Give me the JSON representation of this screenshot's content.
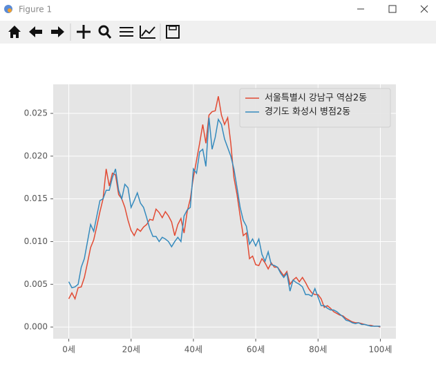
{
  "window_title": "Figure 1",
  "chart_data": {
    "type": "line",
    "x": [
      0,
      1,
      2,
      3,
      4,
      5,
      6,
      7,
      8,
      9,
      10,
      11,
      12,
      13,
      14,
      15,
      16,
      17,
      18,
      19,
      20,
      21,
      22,
      23,
      24,
      25,
      26,
      27,
      28,
      29,
      30,
      31,
      32,
      33,
      34,
      35,
      36,
      37,
      38,
      39,
      40,
      41,
      42,
      43,
      44,
      45,
      46,
      47,
      48,
      49,
      50,
      51,
      52,
      53,
      54,
      55,
      56,
      57,
      58,
      59,
      60,
      61,
      62,
      63,
      64,
      65,
      66,
      67,
      68,
      69,
      70,
      71,
      72,
      73,
      74,
      75,
      76,
      77,
      78,
      79,
      80,
      81,
      82,
      83,
      84,
      85,
      86,
      87,
      88,
      89,
      90,
      91,
      92,
      93,
      94,
      95,
      96,
      97,
      98,
      99,
      100
    ],
    "series": [
      {
        "name": "서울특별시 강남구 역삼2동",
        "color": "#E24A33",
        "values": [
          0.0033,
          0.004,
          0.0033,
          0.0046,
          0.0047,
          0.0058,
          0.0075,
          0.0093,
          0.0102,
          0.0118,
          0.0135,
          0.015,
          0.0185,
          0.0165,
          0.018,
          0.0178,
          0.0155,
          0.015,
          0.014,
          0.0125,
          0.0113,
          0.0107,
          0.0115,
          0.0112,
          0.0117,
          0.012,
          0.0126,
          0.0125,
          0.0138,
          0.0134,
          0.0128,
          0.0135,
          0.013,
          0.0123,
          0.0107,
          0.012,
          0.0127,
          0.011,
          0.0135,
          0.015,
          0.0175,
          0.0195,
          0.0215,
          0.0237,
          0.0215,
          0.0248,
          0.0252,
          0.0253,
          0.027,
          0.0248,
          0.0237,
          0.0245,
          0.0215,
          0.0175,
          0.0155,
          0.013,
          0.0107,
          0.011,
          0.008,
          0.0083,
          0.0073,
          0.0072,
          0.008,
          0.0075,
          0.0068,
          0.0075,
          0.007,
          0.007,
          0.0065,
          0.006,
          0.0065,
          0.005,
          0.0055,
          0.0058,
          0.0053,
          0.0058,
          0.0052,
          0.0045,
          0.004,
          0.0038,
          0.0038,
          0.0033,
          0.0023,
          0.0025,
          0.0022,
          0.0018,
          0.0016,
          0.0014,
          0.0013,
          0.001,
          0.0008,
          0.0006,
          0.0005,
          0.0005,
          0.0004,
          0.0003,
          0.0002,
          0.0002,
          0.0001,
          0.0001,
          0.0
        ]
      },
      {
        "name": "경기도 화성시 병점2동",
        "color": "#348ABD",
        "values": [
          0.0053,
          0.0046,
          0.0047,
          0.005,
          0.007,
          0.008,
          0.01,
          0.012,
          0.0112,
          0.013,
          0.0148,
          0.015,
          0.016,
          0.016,
          0.0175,
          0.0185,
          0.016,
          0.015,
          0.0167,
          0.0163,
          0.014,
          0.0148,
          0.0157,
          0.0145,
          0.014,
          0.0128,
          0.0115,
          0.0106,
          0.0106,
          0.01,
          0.0105,
          0.0103,
          0.01,
          0.0094,
          0.01,
          0.0105,
          0.01,
          0.013,
          0.0137,
          0.014,
          0.0185,
          0.018,
          0.0205,
          0.0208,
          0.0188,
          0.0245,
          0.0208,
          0.0222,
          0.0243,
          0.0237,
          0.022,
          0.021,
          0.02,
          0.0185,
          0.0163,
          0.014,
          0.0125,
          0.0118,
          0.0097,
          0.0103,
          0.0095,
          0.0103,
          0.0085,
          0.0077,
          0.0088,
          0.0073,
          0.0072,
          0.007,
          0.0063,
          0.0058,
          0.0063,
          0.0042,
          0.0055,
          0.0052,
          0.005,
          0.0047,
          0.0038,
          0.0038,
          0.0036,
          0.0045,
          0.0035,
          0.0025,
          0.0025,
          0.0022,
          0.002,
          0.002,
          0.0018,
          0.0015,
          0.0012,
          0.0008,
          0.0007,
          0.0005,
          0.0004,
          0.0005,
          0.0003,
          0.0003,
          0.0002,
          0.0001,
          0.0001,
          0.0001,
          0.0001
        ]
      }
    ],
    "xlim": [
      -5,
      105
    ],
    "xticks": [
      {
        "value": 0,
        "label": "0세"
      },
      {
        "value": 20,
        "label": "20세"
      },
      {
        "value": 40,
        "label": "40세"
      },
      {
        "value": 60,
        "label": "60세"
      },
      {
        "value": 80,
        "label": "80세"
      },
      {
        "value": 100,
        "label": "100세"
      }
    ],
    "ylim": [
      -0.00137,
      0.0284
    ],
    "yticks": [
      {
        "value": 0,
        "label": "0.000"
      },
      {
        "value": 0.005,
        "label": "0.005"
      },
      {
        "value": 0.01,
        "label": "0.010"
      },
      {
        "value": 0.015,
        "label": "0.015"
      },
      {
        "value": 0.02,
        "label": "0.020"
      },
      {
        "value": 0.025,
        "label": "0.025"
      }
    ],
    "grid": true,
    "legend": "upper right"
  }
}
